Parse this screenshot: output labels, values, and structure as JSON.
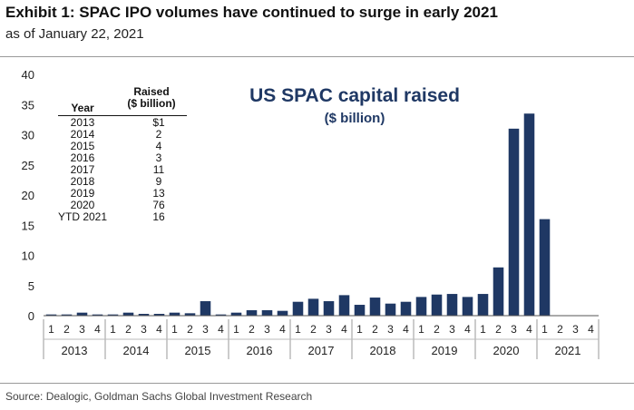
{
  "header": {
    "title": "Exhibit 1: SPAC IPO volumes have continued to surge in early 2021",
    "subtitle": "as of January 22, 2021"
  },
  "chart_data": {
    "type": "bar",
    "title": "US SPAC capital raised",
    "subtitle": "($ billion)",
    "xlabel": "",
    "ylabel": "",
    "ylim": [
      0,
      40
    ],
    "yticks": [
      0,
      5,
      10,
      15,
      20,
      25,
      30,
      35,
      40
    ],
    "grid": false,
    "bar_color": "#1f3864",
    "categories": [
      "2013 Q1",
      "2013 Q2",
      "2013 Q3",
      "2013 Q4",
      "2014 Q1",
      "2014 Q2",
      "2014 Q3",
      "2014 Q4",
      "2015 Q1",
      "2015 Q2",
      "2015 Q3",
      "2015 Q4",
      "2016 Q1",
      "2016 Q2",
      "2016 Q3",
      "2016 Q4",
      "2017 Q1",
      "2017 Q2",
      "2017 Q3",
      "2017 Q4",
      "2018 Q1",
      "2018 Q2",
      "2018 Q3",
      "2018 Q4",
      "2019 Q1",
      "2019 Q2",
      "2019 Q3",
      "2019 Q4",
      "2020 Q1",
      "2020 Q2",
      "2020 Q3",
      "2020 Q4",
      "2021 Q1",
      "2021 Q2",
      "2021 Q3",
      "2021 Q4"
    ],
    "quarter_labels": [
      "1",
      "2",
      "3",
      "4"
    ],
    "year_groups": [
      "2013",
      "2014",
      "2015",
      "2016",
      "2017",
      "2018",
      "2019",
      "2020",
      "2021"
    ],
    "values": [
      0.2,
      0.2,
      0.5,
      0.2,
      0.2,
      0.5,
      0.3,
      0.3,
      0.5,
      0.4,
      2.4,
      0.2,
      0.5,
      0.9,
      0.9,
      0.8,
      2.3,
      2.8,
      2.4,
      3.4,
      1.8,
      3.0,
      2.0,
      2.3,
      3.1,
      3.5,
      3.6,
      3.1,
      3.6,
      8.0,
      31.0,
      33.5,
      16.0,
      0,
      0,
      0
    ],
    "table": {
      "year_header": "Year",
      "raised_header": [
        "Raised",
        "($ billion)"
      ],
      "rows": [
        {
          "year": "2013",
          "raised": "$1"
        },
        {
          "year": "2014",
          "raised": "2"
        },
        {
          "year": "2015",
          "raised": "4"
        },
        {
          "year": "2016",
          "raised": "3"
        },
        {
          "year": "2017",
          "raised": "11"
        },
        {
          "year": "2018",
          "raised": "9"
        },
        {
          "year": "2019",
          "raised": "13"
        },
        {
          "year": "2020",
          "raised": "76"
        },
        {
          "year": "YTD 2021",
          "raised": "16"
        }
      ]
    }
  },
  "footer": {
    "source": "Source: Dealogic, Goldman Sachs Global Investment Research"
  }
}
